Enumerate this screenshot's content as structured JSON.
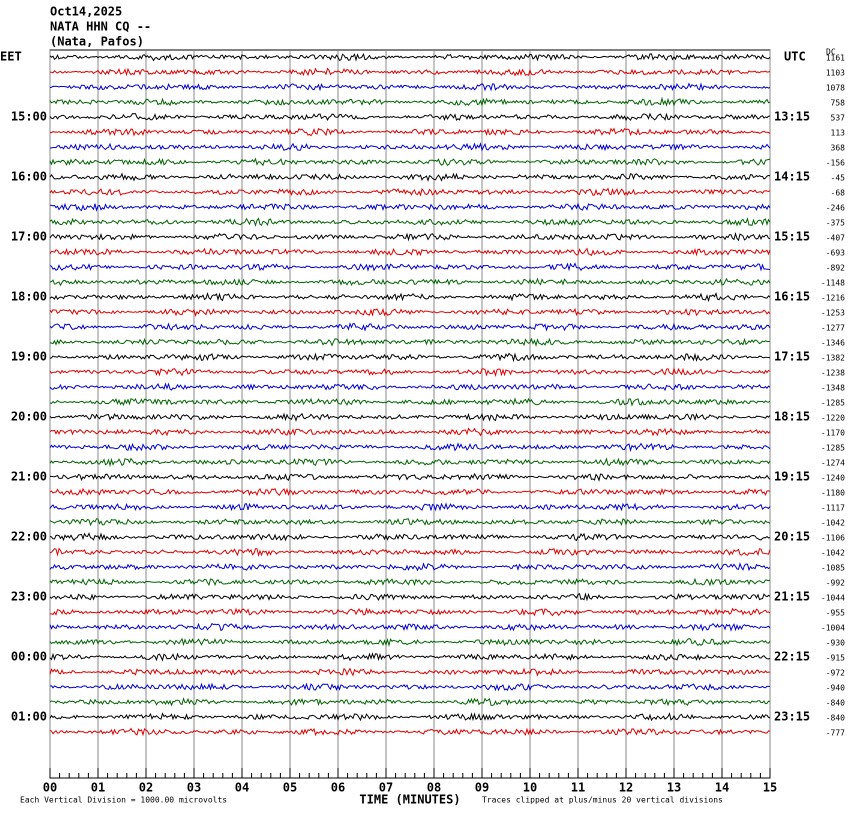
{
  "header": {
    "date": "Oct14,2025",
    "station": "NATA HHN CQ --",
    "location": "(Nata, Pafos)"
  },
  "left_label": "EET",
  "right_label": "UTC",
  "dc_label": "DC",
  "chart_data": {
    "type": "helicorder",
    "left_times": [
      "15:00",
      "16:00",
      "17:00",
      "18:00",
      "19:00",
      "20:00",
      "21:00",
      "22:00",
      "23:00",
      "00:00",
      "01:00"
    ],
    "right_times": [
      "13:15",
      "14:15",
      "15:15",
      "16:15",
      "17:15",
      "18:15",
      "19:15",
      "20:15",
      "21:15",
      "22:15",
      "23:15"
    ],
    "dc_offsets": [
      1161,
      1103,
      1078,
      758,
      537,
      113,
      368,
      -156,
      -45,
      -68,
      -246,
      -375,
      -407,
      -693,
      -892,
      -1148,
      -1216,
      -1253,
      -1277,
      -1346,
      -1382,
      -1238,
      -1348,
      -1285,
      -1220,
      -1170,
      -1285,
      -1274,
      -1240,
      -1180,
      -1117,
      -1042,
      -1106,
      -1042,
      -1085,
      -992,
      -1044,
      -955,
      -1004,
      -930,
      -915,
      -972,
      -940,
      -840,
      -840,
      -777
    ],
    "colors": [
      "#000000",
      "#e00000",
      "#0000d0",
      "#006400"
    ],
    "xlim": [
      0,
      15
    ],
    "xticks": [
      {
        "value": 0,
        "label": "00"
      },
      {
        "value": 1,
        "label": "01"
      },
      {
        "value": 2,
        "label": "02"
      },
      {
        "value": 3,
        "label": "03"
      },
      {
        "value": 4,
        "label": "04"
      },
      {
        "value": 5,
        "label": "05"
      },
      {
        "value": 6,
        "label": "06"
      },
      {
        "value": 7,
        "label": "07"
      },
      {
        "value": 8,
        "label": "08"
      },
      {
        "value": 9,
        "label": "09"
      },
      10,
      11,
      12,
      13,
      14,
      15
    ],
    "xlabel": "TIME (MINUTES)"
  },
  "footer": {
    "scale": "Each Vertical Division = 1000.00 microvolts",
    "clip": "Traces clipped at plus/minus 20 vertical divisions"
  }
}
